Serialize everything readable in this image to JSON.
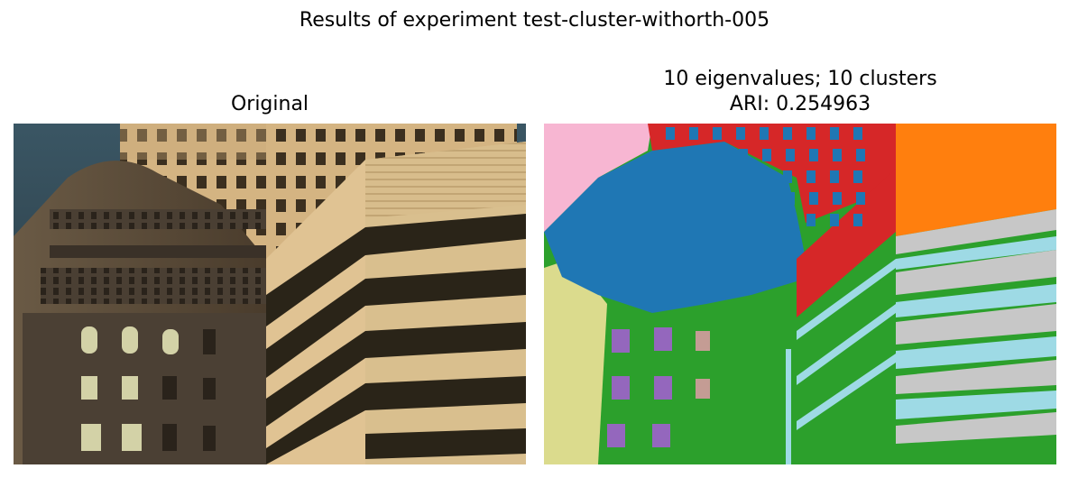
{
  "figure": {
    "suptitle": "Results of experiment test-cluster-withorth-005"
  },
  "panels": {
    "left": {
      "title": "Original"
    },
    "right": {
      "title_line1": "10 eigenvalues; 10 clusters",
      "title_line2": "ARI: 0.254963"
    }
  },
  "palette": {
    "blue": "#1f77b4",
    "orange": "#ff7f0e",
    "green": "#2ca02c",
    "red": "#d62728",
    "purple": "#9467bd",
    "brown": "#c49c94",
    "pink": "#f7b6d2",
    "gray": "#c7c7c7",
    "olive": "#dbdb8d",
    "cyan": "#9edae5"
  }
}
